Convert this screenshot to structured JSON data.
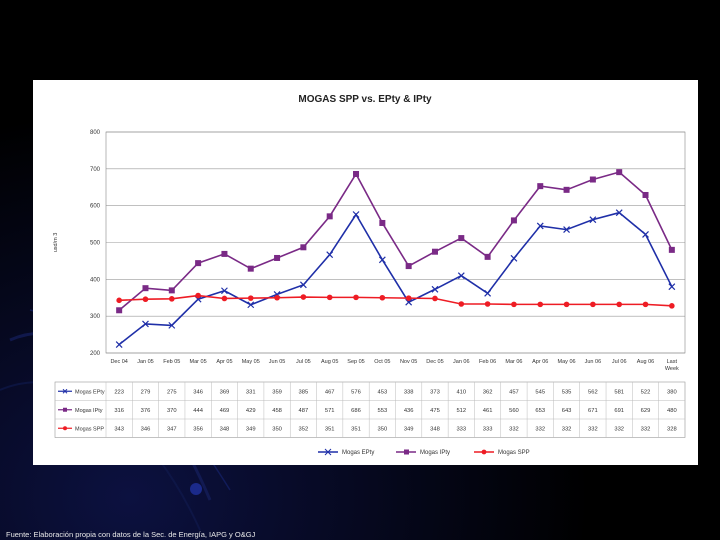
{
  "footer": {
    "source": "Fuente: Elaboración propia con datos de la Sec. de Energía, IAPG y O&GJ"
  },
  "chart_data": {
    "type": "line",
    "title": "MOGAS SPP vs. EPty & IPty",
    "ylabel": "usd/m 3",
    "xlabel": "",
    "ylim": [
      200,
      800
    ],
    "yticks": [
      200,
      300,
      400,
      500,
      600,
      700,
      800
    ],
    "grid": true,
    "legend_position": "bottom",
    "categories": [
      "Dec 04",
      "Jan 05",
      "Feb 05",
      "Mar 05",
      "Apr 05",
      "May 05",
      "Jun 05",
      "Jul 05",
      "Aug 05",
      "Sep 05",
      "Oct 05",
      "Nov 05",
      "Dec 05",
      "Jan 06",
      "Feb 06",
      "Mar 06",
      "Apr 06",
      "May 06",
      "Jun 06",
      "Jul 06",
      "Aug 06",
      "Last Week"
    ],
    "series": [
      {
        "name": "Mogas EPty",
        "color": "#1f2fa8",
        "marker": "x",
        "values": [
          223,
          279,
          275,
          346,
          369,
          331,
          359,
          385,
          467,
          576,
          453,
          338,
          373,
          410,
          362,
          457,
          545,
          535,
          562,
          581,
          522,
          380
        ]
      },
      {
        "name": "Mogas IPty",
        "color": "#7a2a86",
        "marker": "square",
        "values": [
          316,
          376,
          370,
          444,
          469,
          429,
          458,
          487,
          571,
          686,
          553,
          436,
          475,
          512,
          461,
          560,
          653,
          643,
          671,
          691,
          629,
          480
        ]
      },
      {
        "name": "Mogas SPP",
        "color": "#ee1c24",
        "marker": "circle",
        "values": [
          343,
          346,
          347,
          356,
          348,
          349,
          350,
          352,
          351,
          351,
          350,
          349,
          348,
          333,
          333,
          332,
          332,
          332,
          332,
          332,
          332,
          328
        ]
      }
    ]
  }
}
